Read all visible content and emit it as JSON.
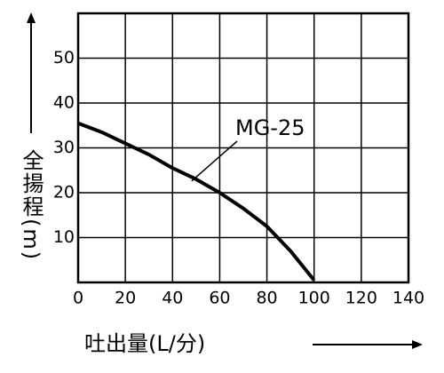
{
  "chart_data": {
    "type": "line",
    "x_label": "吐出量(L/分)",
    "y_label": "全揚程(m)",
    "x": [
      0,
      10,
      20,
      30,
      40,
      50,
      60,
      70,
      80,
      90,
      100
    ],
    "series": [
      {
        "name": "MG-25",
        "color": "#000000",
        "values": [
          35.5,
          33.5,
          31,
          28.5,
          25.5,
          23,
          20,
          16.5,
          12.5,
          7,
          0.5
        ]
      }
    ],
    "xlim": [
      0,
      140
    ],
    "xticks": [
      0,
      20,
      40,
      60,
      80,
      100,
      120,
      140
    ],
    "ylim": [
      0,
      60
    ],
    "yticks": [
      10,
      20,
      30,
      40,
      50
    ],
    "grid": true
  }
}
